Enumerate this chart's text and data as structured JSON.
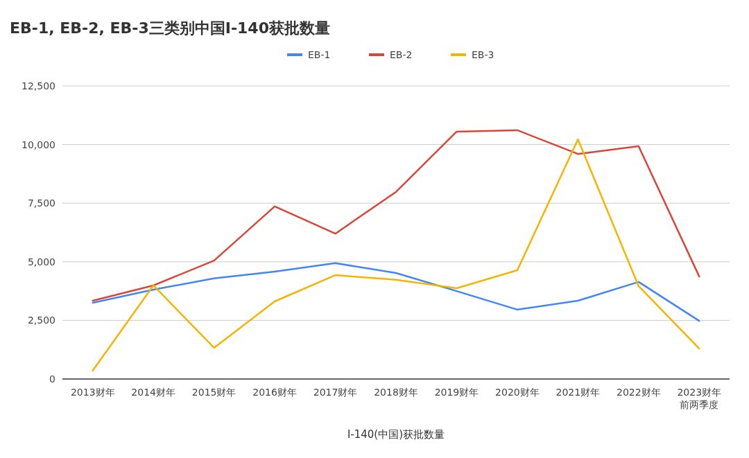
{
  "chart_data": {
    "type": "line",
    "title": "EB-1, EB-2, EB-3三类别中国I-140获批数量",
    "xlabel": "I-140(中国)获批数量",
    "categories": [
      "2013财年",
      "2014财年",
      "2015财年",
      "2016财年",
      "2017财年",
      "2018财年",
      "2019财年",
      "2020财年",
      "2021财年",
      "2022财年",
      "2023财年前两季度"
    ],
    "series": [
      {
        "name": "EB-1",
        "color": "#4285f4",
        "values": [
          3250,
          3810,
          4290,
          4580,
          4940,
          4520,
          3750,
          2960,
          3340,
          4140,
          2480
        ]
      },
      {
        "name": "EB-2",
        "color": "#db4437",
        "values": [
          3340,
          3990,
          5050,
          7360,
          6200,
          7980,
          10550,
          10610,
          9600,
          9930,
          4370
        ]
      },
      {
        "name": "EB-3",
        "color": "#f4b400",
        "values": [
          360,
          3990,
          1330,
          3310,
          4430,
          4230,
          3870,
          4640,
          10220,
          3960,
          1300
        ]
      }
    ],
    "ylim": [
      0,
      12500
    ],
    "yticks": [
      {
        "value": 0,
        "label": "0"
      },
      {
        "value": 2500,
        "label": "2,500"
      },
      {
        "value": 5000,
        "label": "5,000"
      },
      {
        "value": 7500,
        "label": "7,500"
      },
      {
        "value": 10000,
        "label": "10,000"
      },
      {
        "value": 12500,
        "label": "12,500"
      }
    ],
    "grid": "y",
    "legend": "top",
    "marker": "none",
    "line_style": "solid"
  }
}
